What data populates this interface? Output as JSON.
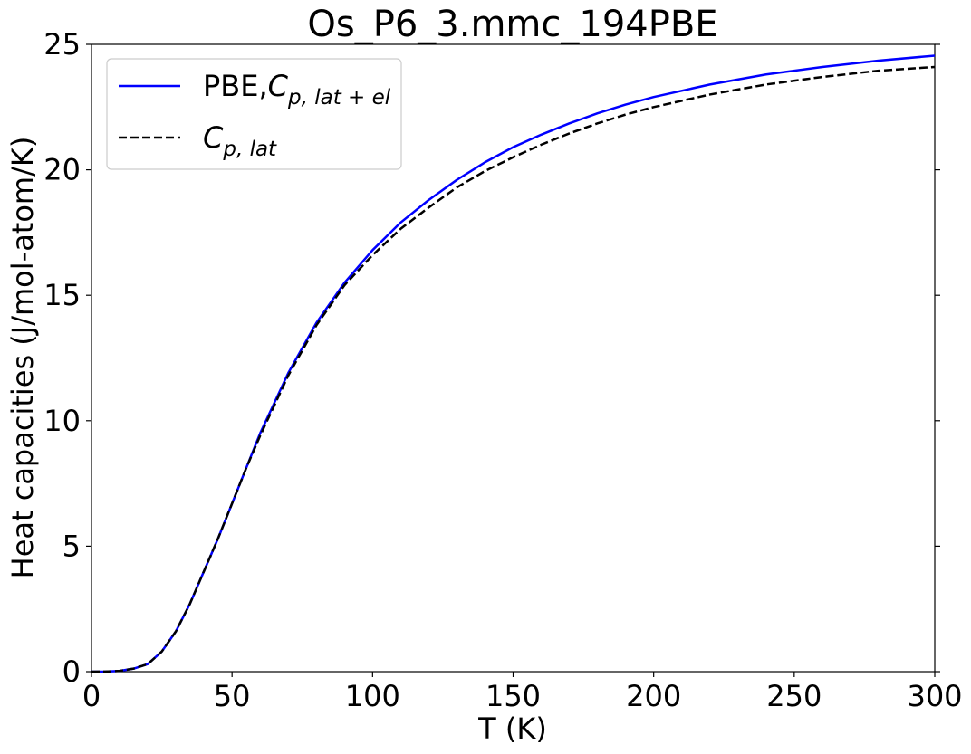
{
  "chart_data": {
    "type": "line",
    "title": "Os_P6_3.mmc_194PBE",
    "xlabel": "T (K)",
    "ylabel": "Heat capacities (J/mol-atom/K)",
    "xlim": [
      0,
      300
    ],
    "ylim": [
      0,
      25
    ],
    "xticks": [
      0,
      50,
      100,
      150,
      200,
      250,
      300
    ],
    "yticks": [
      0,
      5,
      10,
      15,
      20,
      25
    ],
    "grid": false,
    "legend": {
      "placement": "top-left",
      "entries": [
        {
          "series": 0,
          "prefix": "PBE,",
          "symbol": "C",
          "subscript": "p, lat + el"
        },
        {
          "series": 1,
          "prefix": "",
          "symbol": "C",
          "subscript": "p, lat"
        }
      ]
    },
    "series": [
      {
        "style": "solid",
        "color": "#0000ff",
        "x": [
          0,
          5,
          10,
          15,
          20,
          25,
          30,
          35,
          40,
          45,
          50,
          55,
          60,
          65,
          70,
          75,
          80,
          90,
          100,
          110,
          120,
          130,
          140,
          150,
          160,
          170,
          180,
          190,
          200,
          220,
          240,
          260,
          280,
          300
        ],
        "y": [
          0,
          0.005,
          0.03,
          0.12,
          0.3,
          0.8,
          1.6,
          2.7,
          4.0,
          5.3,
          6.7,
          8.1,
          9.5,
          10.7,
          11.9,
          12.9,
          13.9,
          15.5,
          16.8,
          17.9,
          18.8,
          19.6,
          20.3,
          20.9,
          21.4,
          21.85,
          22.25,
          22.6,
          22.9,
          23.4,
          23.8,
          24.1,
          24.35,
          24.55
        ]
      },
      {
        "style": "dashed",
        "color": "#000000",
        "x": [
          0,
          5,
          10,
          15,
          20,
          25,
          30,
          35,
          40,
          45,
          50,
          55,
          60,
          65,
          70,
          75,
          80,
          90,
          100,
          110,
          120,
          130,
          140,
          150,
          160,
          170,
          180,
          190,
          200,
          220,
          240,
          260,
          280,
          300
        ],
        "y": [
          0,
          0.005,
          0.03,
          0.12,
          0.3,
          0.8,
          1.6,
          2.7,
          4.0,
          5.3,
          6.7,
          8.1,
          9.4,
          10.6,
          11.8,
          12.8,
          13.8,
          15.4,
          16.6,
          17.65,
          18.5,
          19.3,
          19.95,
          20.5,
          21.0,
          21.45,
          21.85,
          22.2,
          22.5,
          23.0,
          23.4,
          23.7,
          23.95,
          24.1
        ]
      }
    ]
  }
}
